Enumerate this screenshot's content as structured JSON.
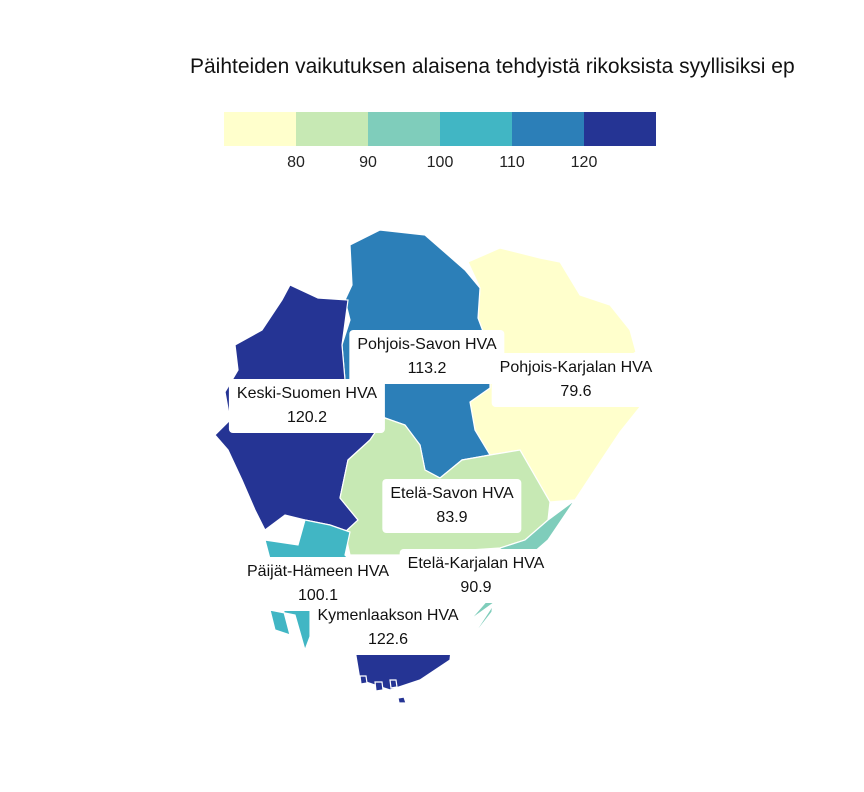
{
  "title": "Päihteiden vaikutuksen alaisena tehdyistä rikoksista syyllisiksi ep",
  "legend": {
    "bins": [
      "#ffffcc",
      "#c7e9b4",
      "#7fcdbb",
      "#41b6c4",
      "#2c7fb8",
      "#253494"
    ],
    "ticks": [
      "80",
      "90",
      "100",
      "110",
      "120"
    ]
  },
  "regions": [
    {
      "name": "Pohjois-Savon HVA",
      "value": "113.2",
      "color": "#2c7fb8"
    },
    {
      "name": "Pohjois-Karjalan HVA",
      "value": "79.6",
      "color": "#ffffcc"
    },
    {
      "name": "Keski-Suomen HVA",
      "value": "120.2",
      "color": "#253494"
    },
    {
      "name": "Etelä-Savon HVA",
      "value": "83.9",
      "color": "#c7e9b4"
    },
    {
      "name": "Päijät-Hämeen HVA",
      "value": "100.1",
      "color": "#41b6c4"
    },
    {
      "name": "Etelä-Karjalan HVA",
      "value": "90.9",
      "color": "#7fcdbb"
    },
    {
      "name": "Kymenlaakson HVA",
      "value": "122.6",
      "color": "#253494"
    }
  ]
}
